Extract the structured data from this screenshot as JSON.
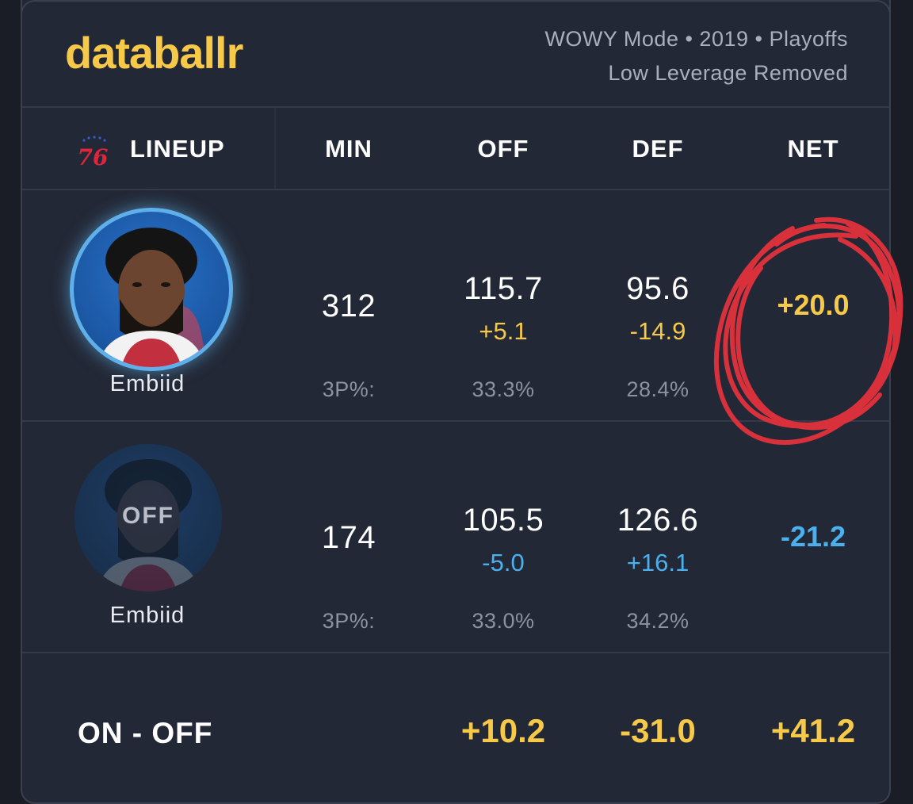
{
  "header": {
    "logo": "databallr",
    "meta_line1": "WOWY Mode • 2019 • Playoffs",
    "meta_line2": "Low Leverage Removed"
  },
  "columns": {
    "lineup": "LINEUP",
    "min": "MIN",
    "off": "OFF",
    "def": "DEF",
    "net": "NET"
  },
  "rows": [
    {
      "player": "Embiid",
      "status": "on",
      "min": "312",
      "off": "115.7",
      "off_delta": "+5.1",
      "def": "95.6",
      "def_delta": "-14.9",
      "net": "+20.0",
      "tp_label": "3P%:",
      "off_3p": "33.3%",
      "def_3p": "28.4%"
    },
    {
      "player": "Embiid",
      "status": "off",
      "off_tag": "OFF",
      "min": "174",
      "off": "105.5",
      "off_delta": "-5.0",
      "def": "126.6",
      "def_delta": "+16.1",
      "net": "-21.2",
      "tp_label": "3P%:",
      "off_3p": "33.0%",
      "def_3p": "34.2%"
    }
  ],
  "footer": {
    "label": "ON - OFF",
    "off": "+10.2",
    "def": "-31.0",
    "net": "+41.2"
  },
  "team_logo_text": "76",
  "colors": {
    "accent_yellow": "#f7c948",
    "accent_blue": "#4ab0ee",
    "annotation_red": "#e8323c",
    "card_bg": "#232836"
  }
}
